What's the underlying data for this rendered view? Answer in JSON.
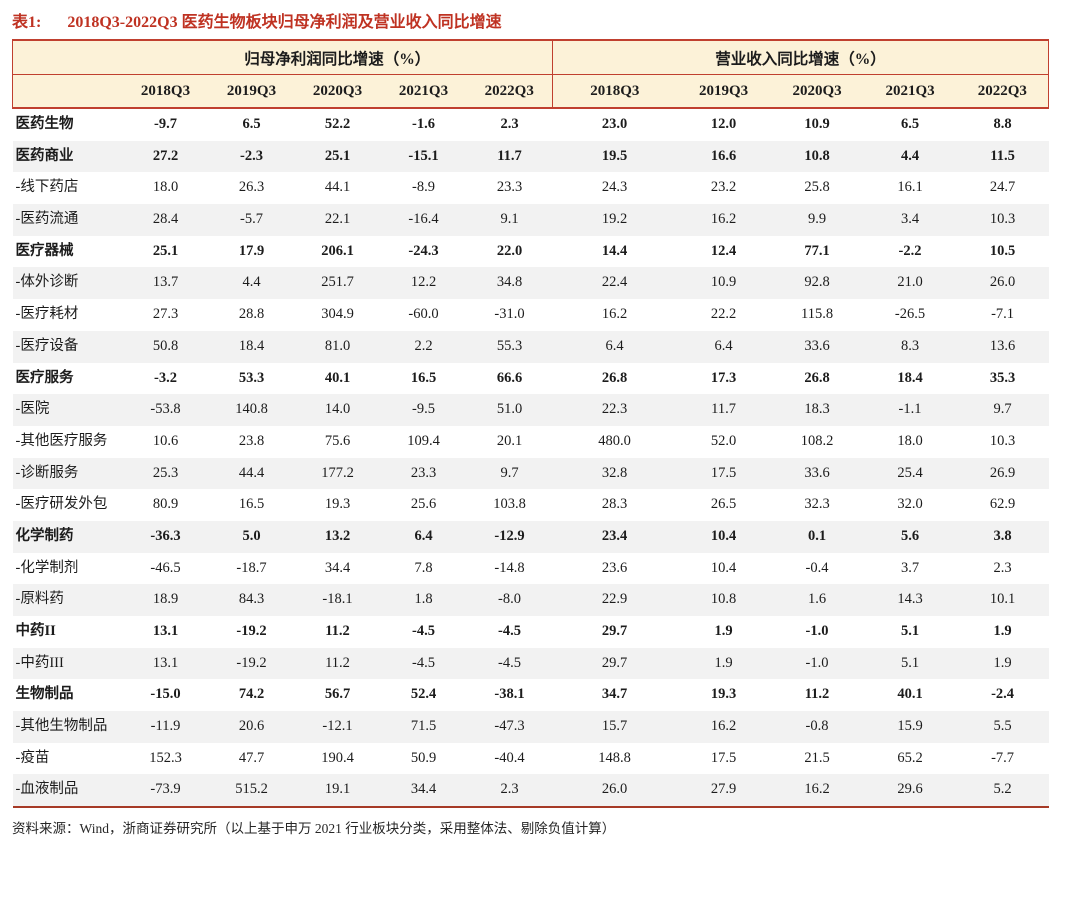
{
  "title": {
    "prefix": "表1:",
    "text": "2018Q3-2022Q3 医药生物板块归母净利润及营业收入同比增速"
  },
  "colors": {
    "title_red": "#bf3222",
    "line_red": "#c0402f",
    "bottom_red": "#a63a26",
    "cream": "#fcf2d8",
    "alt_gray": "#f2f2f2"
  },
  "table": {
    "group_headers": [
      "归母净利润同比增速（%）",
      "营业收入同比增速（%）"
    ],
    "quarters": [
      "2018Q3",
      "2019Q3",
      "2020Q3",
      "2021Q3",
      "2022Q3"
    ],
    "rows": [
      {
        "label": "医药生物",
        "bold": true,
        "profit": [
          "-9.7",
          "6.5",
          "52.2",
          "-1.6",
          "2.3"
        ],
        "revenue": [
          "23.0",
          "12.0",
          "10.9",
          "6.5",
          "8.8"
        ]
      },
      {
        "label": "医药商业",
        "bold": true,
        "profit": [
          "27.2",
          "-2.3",
          "25.1",
          "-15.1",
          "11.7"
        ],
        "revenue": [
          "19.5",
          "16.6",
          "10.8",
          "4.4",
          "11.5"
        ]
      },
      {
        "label": "-线下药店",
        "bold": false,
        "profit": [
          "18.0",
          "26.3",
          "44.1",
          "-8.9",
          "23.3"
        ],
        "revenue": [
          "24.3",
          "23.2",
          "25.8",
          "16.1",
          "24.7"
        ]
      },
      {
        "label": "-医药流通",
        "bold": false,
        "profit": [
          "28.4",
          "-5.7",
          "22.1",
          "-16.4",
          "9.1"
        ],
        "revenue": [
          "19.2",
          "16.2",
          "9.9",
          "3.4",
          "10.3"
        ]
      },
      {
        "label": "医疗器械",
        "bold": true,
        "profit": [
          "25.1",
          "17.9",
          "206.1",
          "-24.3",
          "22.0"
        ],
        "revenue": [
          "14.4",
          "12.4",
          "77.1",
          "-2.2",
          "10.5"
        ]
      },
      {
        "label": "-体外诊断",
        "bold": false,
        "profit": [
          "13.7",
          "4.4",
          "251.7",
          "12.2",
          "34.8"
        ],
        "revenue": [
          "22.4",
          "10.9",
          "92.8",
          "21.0",
          "26.0"
        ]
      },
      {
        "label": "-医疗耗材",
        "bold": false,
        "profit": [
          "27.3",
          "28.8",
          "304.9",
          "-60.0",
          "-31.0"
        ],
        "revenue": [
          "16.2",
          "22.2",
          "115.8",
          "-26.5",
          "-7.1"
        ]
      },
      {
        "label": "-医疗设备",
        "bold": false,
        "profit": [
          "50.8",
          "18.4",
          "81.0",
          "2.2",
          "55.3"
        ],
        "revenue": [
          "6.4",
          "6.4",
          "33.6",
          "8.3",
          "13.6"
        ]
      },
      {
        "label": "医疗服务",
        "bold": true,
        "profit": [
          "-3.2",
          "53.3",
          "40.1",
          "16.5",
          "66.6"
        ],
        "revenue": [
          "26.8",
          "17.3",
          "26.8",
          "18.4",
          "35.3"
        ]
      },
      {
        "label": "-医院",
        "bold": false,
        "profit": [
          "-53.8",
          "140.8",
          "14.0",
          "-9.5",
          "51.0"
        ],
        "revenue": [
          "22.3",
          "11.7",
          "18.3",
          "-1.1",
          "9.7"
        ]
      },
      {
        "label": "-其他医疗服务",
        "bold": false,
        "profit": [
          "10.6",
          "23.8",
          "75.6",
          "109.4",
          "20.1"
        ],
        "revenue": [
          "480.0",
          "52.0",
          "108.2",
          "18.0",
          "10.3"
        ]
      },
      {
        "label": "-诊断服务",
        "bold": false,
        "profit": [
          "25.3",
          "44.4",
          "177.2",
          "23.3",
          "9.7"
        ],
        "revenue": [
          "32.8",
          "17.5",
          "33.6",
          "25.4",
          "26.9"
        ]
      },
      {
        "label": "-医疗研发外包",
        "bold": false,
        "profit": [
          "80.9",
          "16.5",
          "19.3",
          "25.6",
          "103.8"
        ],
        "revenue": [
          "28.3",
          "26.5",
          "32.3",
          "32.0",
          "62.9"
        ]
      },
      {
        "label": "化学制药",
        "bold": true,
        "profit": [
          "-36.3",
          "5.0",
          "13.2",
          "6.4",
          "-12.9"
        ],
        "revenue": [
          "23.4",
          "10.4",
          "0.1",
          "5.6",
          "3.8"
        ]
      },
      {
        "label": "-化学制剂",
        "bold": false,
        "profit": [
          "-46.5",
          "-18.7",
          "34.4",
          "7.8",
          "-14.8"
        ],
        "revenue": [
          "23.6",
          "10.4",
          "-0.4",
          "3.7",
          "2.3"
        ]
      },
      {
        "label": "-原料药",
        "bold": false,
        "profit": [
          "18.9",
          "84.3",
          "-18.1",
          "1.8",
          "-8.0"
        ],
        "revenue": [
          "22.9",
          "10.8",
          "1.6",
          "14.3",
          "10.1"
        ]
      },
      {
        "label": "中药II",
        "bold": true,
        "profit": [
          "13.1",
          "-19.2",
          "11.2",
          "-4.5",
          "-4.5"
        ],
        "revenue": [
          "29.7",
          "1.9",
          "-1.0",
          "5.1",
          "1.9"
        ]
      },
      {
        "label": "-中药III",
        "bold": false,
        "profit": [
          "13.1",
          "-19.2",
          "11.2",
          "-4.5",
          "-4.5"
        ],
        "revenue": [
          "29.7",
          "1.9",
          "-1.0",
          "5.1",
          "1.9"
        ]
      },
      {
        "label": "生物制品",
        "bold": true,
        "profit": [
          "-15.0",
          "74.2",
          "56.7",
          "52.4",
          "-38.1"
        ],
        "revenue": [
          "34.7",
          "19.3",
          "11.2",
          "40.1",
          "-2.4"
        ]
      },
      {
        "label": "-其他生物制品",
        "bold": false,
        "profit": [
          "-11.9",
          "20.6",
          "-12.1",
          "71.5",
          "-47.3"
        ],
        "revenue": [
          "15.7",
          "16.2",
          "-0.8",
          "15.9",
          "5.5"
        ]
      },
      {
        "label": "-疫苗",
        "bold": false,
        "profit": [
          "152.3",
          "47.7",
          "190.4",
          "50.9",
          "-40.4"
        ],
        "revenue": [
          "148.8",
          "17.5",
          "21.5",
          "65.2",
          "-7.7"
        ]
      },
      {
        "label": "-血液制品",
        "bold": false,
        "profit": [
          "-73.9",
          "515.2",
          "19.1",
          "34.4",
          "2.3"
        ],
        "revenue": [
          "26.0",
          "27.9",
          "16.2",
          "29.6",
          "5.2"
        ]
      }
    ]
  },
  "footer": "资料来源：Wind，浙商证券研究所（以上基于申万 2021 行业板块分类，采用整体法、剔除负值计算）"
}
